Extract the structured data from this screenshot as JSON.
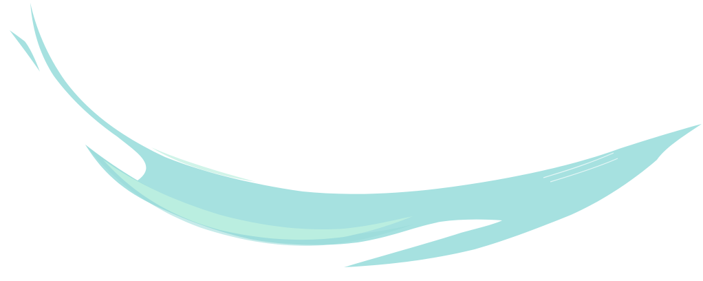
{
  "artwork": {
    "icon": "brush-stroke-swoosh",
    "colors": {
      "background": "#ffffff",
      "stroke_main": "#a6e1e0",
      "stroke_highlight": "#bdf0e0",
      "stroke_shadow": "#98dad9"
    }
  }
}
